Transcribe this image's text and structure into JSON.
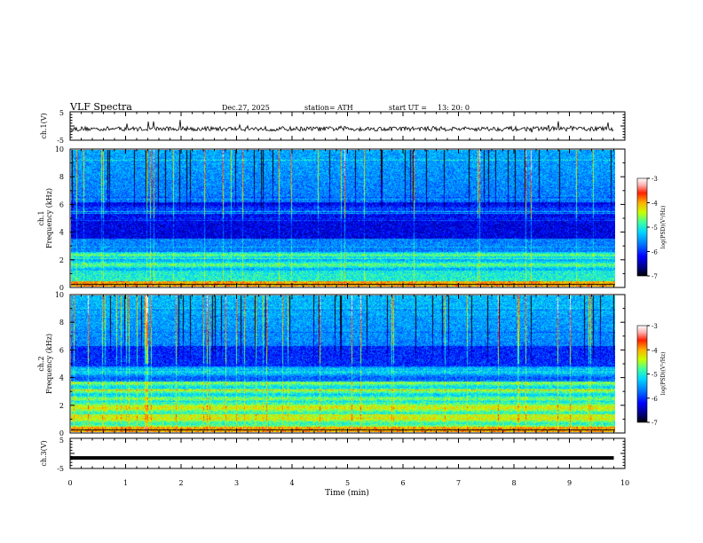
{
  "header": {
    "title": "VLF Spectra",
    "date": "Dec.27, 2025",
    "station": "station= ATH",
    "start_label": "start UT =",
    "start_time": "13: 20: 0"
  },
  "colors": {
    "waveform": "#000000",
    "colormap": [
      "#000000",
      "#00007a",
      "#0000ff",
      "#0072ff",
      "#00d8ff",
      "#3fff9f",
      "#c8ff00",
      "#ffb000",
      "#ff2000",
      "#ffd8d8",
      "#ffffff"
    ]
  },
  "chart_data": [
    {
      "type": "line",
      "name": "ch1-waveform",
      "ylabel": "ch.1(V)",
      "ylim": [
        -5,
        5
      ],
      "yticks": [
        "5",
        "-5"
      ],
      "xlim": [
        0,
        10
      ],
      "baseline": -1,
      "trace_end_min": 9.8
    },
    {
      "type": "heatmap",
      "name": "ch1-spectrogram",
      "ylabel_top": "ch.1",
      "ylabel": "Frequency (kHz)",
      "ylim": [
        0,
        10
      ],
      "yticks": [
        "0",
        "2",
        "4",
        "6",
        "8",
        "10"
      ],
      "xlim": [
        0,
        10
      ],
      "data_end_min": 9.8,
      "colorbar": {
        "label": "log(PSD)(V²/Hz)",
        "range": [
          -7,
          -3
        ],
        "ticks": [
          "-3",
          "-4",
          "-5",
          "-6",
          "-7"
        ]
      }
    },
    {
      "type": "heatmap",
      "name": "ch2-spectrogram",
      "ylabel_top": "ch.2",
      "ylabel": "Frequency (kHz)",
      "ylim": [
        0,
        10
      ],
      "yticks": [
        "0",
        "2",
        "4",
        "6",
        "8",
        "10"
      ],
      "xlim": [
        0,
        10
      ],
      "data_end_min": 9.8,
      "colorbar": {
        "label": "log(PSD)(V²/Hz)",
        "range": [
          -7,
          -3
        ],
        "ticks": [
          "-3",
          "-4",
          "-5",
          "-6",
          "-7"
        ]
      }
    },
    {
      "type": "line",
      "name": "ch3-waveform",
      "ylabel": "ch.3(V)",
      "ylim": [
        -5,
        5
      ],
      "yticks": [
        "5",
        "-5"
      ],
      "xlim": [
        0,
        10
      ],
      "baseline": -1.5,
      "trace_end_min": 9.8,
      "xlabel": "Time (min)",
      "xticks": [
        "0",
        "1",
        "2",
        "3",
        "4",
        "5",
        "6",
        "7",
        "8",
        "9",
        "10"
      ]
    }
  ]
}
